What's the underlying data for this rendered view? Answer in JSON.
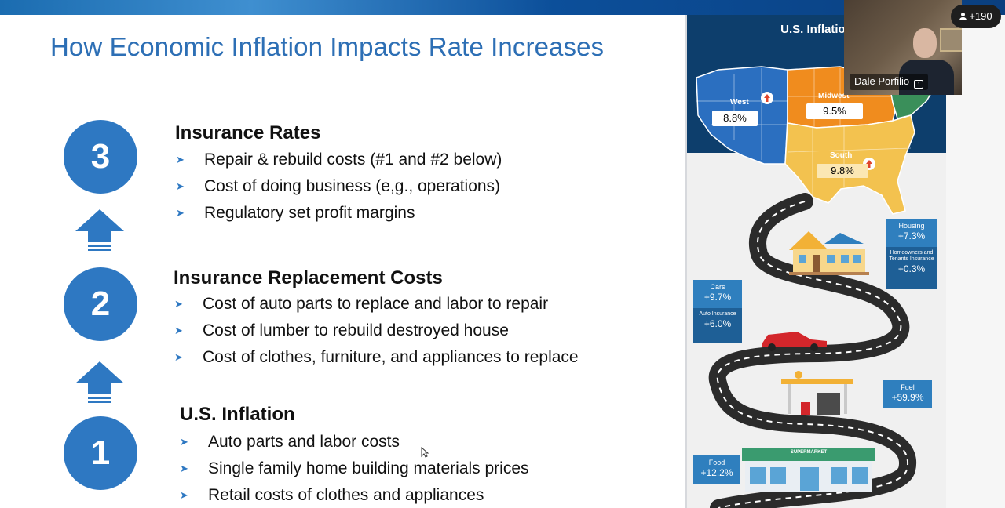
{
  "slide": {
    "title": "How Economic Inflation Impacts Rate Increases",
    "steps": [
      {
        "number": "3",
        "heading": "Insurance Rates",
        "bullets": [
          "Repair & rebuild costs (#1 and #2 below)",
          "Cost of doing business (e,g., operations)",
          "Regulatory set profit margins"
        ]
      },
      {
        "number": "2",
        "heading": "Insurance Replacement Costs",
        "bullets": [
          "Cost of auto parts to replace and labor to repair",
          "Cost of lumber to rebuild destroyed house",
          "Cost of clothes, furniture, and appliances to replace"
        ]
      },
      {
        "number": "1",
        "heading": "U.S. Inflation",
        "bullets": [
          "Auto parts and labor costs",
          "Single family home building materials prices",
          "Retail costs of clothes and appliances"
        ]
      }
    ],
    "colors": {
      "title": "#2d6fb5",
      "circle": "#2e78c2"
    }
  },
  "infographic": {
    "title": "U.S. Inflation",
    "regions": [
      {
        "name": "West",
        "value": "8.8%",
        "color": "#2b6fc0"
      },
      {
        "name": "Midwest",
        "value": "9.5%",
        "color": "#f08c1e"
      },
      {
        "name": "South",
        "value": "9.8%",
        "color": "#f3c24f"
      }
    ],
    "stats": {
      "housing": {
        "label": "Housing",
        "value": "+7.3%"
      },
      "homeowners": {
        "label": "Homeowners and Tenants Insurance",
        "value": "+0.3%"
      },
      "cars": {
        "label": "Cars",
        "value": "+9.7%"
      },
      "auto_insurance": {
        "label": "Auto Insurance",
        "value": "+6.0%"
      },
      "fuel": {
        "label": "Fuel",
        "value": "+59.9%"
      },
      "food": {
        "label": "Food",
        "value": "+12.2%"
      }
    },
    "store_sign": "SUPERMARKET"
  },
  "meeting": {
    "participant_count": "+190",
    "speaker_name": "Dale Porfilio"
  }
}
